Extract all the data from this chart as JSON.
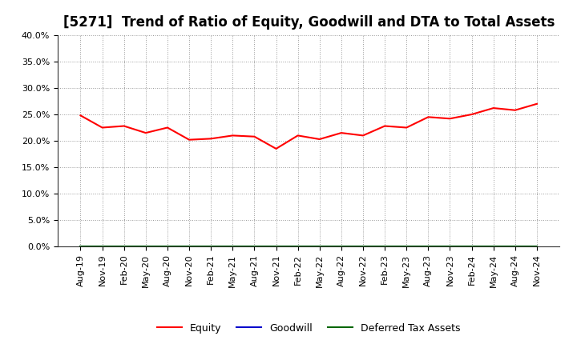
{
  "title": "[5271]  Trend of Ratio of Equity, Goodwill and DTA to Total Assets",
  "x_labels": [
    "Aug-19",
    "Nov-19",
    "Feb-20",
    "May-20",
    "Aug-20",
    "Nov-20",
    "Feb-21",
    "May-21",
    "Aug-21",
    "Nov-21",
    "Feb-22",
    "May-22",
    "Aug-22",
    "Nov-22",
    "Feb-23",
    "May-23",
    "Aug-23",
    "Nov-23",
    "Feb-24",
    "May-24",
    "Aug-24",
    "Nov-24"
  ],
  "equity": [
    24.8,
    22.5,
    22.8,
    21.5,
    22.5,
    20.2,
    20.4,
    21.0,
    20.8,
    18.5,
    21.0,
    20.3,
    21.5,
    21.0,
    22.8,
    22.5,
    24.5,
    24.2,
    25.0,
    26.2,
    25.8,
    27.0
  ],
  "goodwill": [
    0.0,
    0.0,
    0.0,
    0.0,
    0.0,
    0.0,
    0.0,
    0.0,
    0.0,
    0.0,
    0.0,
    0.0,
    0.0,
    0.0,
    0.0,
    0.0,
    0.0,
    0.0,
    0.0,
    0.0,
    0.0,
    0.0
  ],
  "dta": [
    0.0,
    0.0,
    0.0,
    0.0,
    0.0,
    0.0,
    0.0,
    0.0,
    0.0,
    0.0,
    0.0,
    0.0,
    0.0,
    0.0,
    0.0,
    0.0,
    0.0,
    0.0,
    0.0,
    0.0,
    0.0,
    0.0
  ],
  "equity_color": "#FF0000",
  "goodwill_color": "#0000CC",
  "dta_color": "#006600",
  "ylim": [
    0.0,
    40.0
  ],
  "yticks": [
    0.0,
    5.0,
    10.0,
    15.0,
    20.0,
    25.0,
    30.0,
    35.0,
    40.0
  ],
  "background_color": "#FFFFFF",
  "plot_bg_color": "#FFFFFF",
  "grid_color": "#999999",
  "title_fontsize": 12,
  "tick_fontsize": 8,
  "legend_labels": [
    "Equity",
    "Goodwill",
    "Deferred Tax Assets"
  ]
}
